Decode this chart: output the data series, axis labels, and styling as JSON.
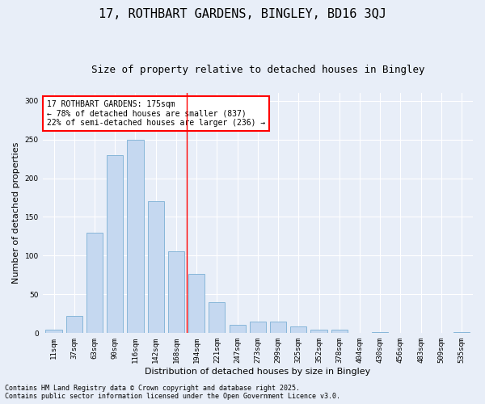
{
  "title": "17, ROTHBART GARDENS, BINGLEY, BD16 3QJ",
  "subtitle": "Size of property relative to detached houses in Bingley",
  "xlabel": "Distribution of detached houses by size in Bingley",
  "ylabel": "Number of detached properties",
  "categories": [
    "11sqm",
    "37sqm",
    "63sqm",
    "90sqm",
    "116sqm",
    "142sqm",
    "168sqm",
    "194sqm",
    "221sqm",
    "247sqm",
    "273sqm",
    "299sqm",
    "325sqm",
    "352sqm",
    "378sqm",
    "404sqm",
    "430sqm",
    "456sqm",
    "483sqm",
    "509sqm",
    "535sqm"
  ],
  "bar_heights": [
    4,
    22,
    130,
    230,
    250,
    170,
    106,
    76,
    40,
    11,
    15,
    15,
    9,
    4,
    4,
    0,
    1,
    0,
    0,
    0,
    1
  ],
  "bar_color": "#c5d8f0",
  "bar_edge_color": "#7bafd4",
  "vline_color": "red",
  "annotation_text": "17 ROTHBART GARDENS: 175sqm\n← 78% of detached houses are smaller (837)\n22% of semi-detached houses are larger (236) →",
  "annotation_box_color": "white",
  "annotation_box_edge": "red",
  "ylim": [
    0,
    310
  ],
  "yticks": [
    0,
    50,
    100,
    150,
    200,
    250,
    300
  ],
  "footer1": "Contains HM Land Registry data © Crown copyright and database right 2025.",
  "footer2": "Contains public sector information licensed under the Open Government Licence v3.0.",
  "background_color": "#e8eef8",
  "grid_color": "white",
  "title_fontsize": 11,
  "subtitle_fontsize": 9,
  "tick_fontsize": 6.5,
  "ylabel_fontsize": 8,
  "xlabel_fontsize": 8,
  "annotation_fontsize": 7,
  "footer_fontsize": 6
}
